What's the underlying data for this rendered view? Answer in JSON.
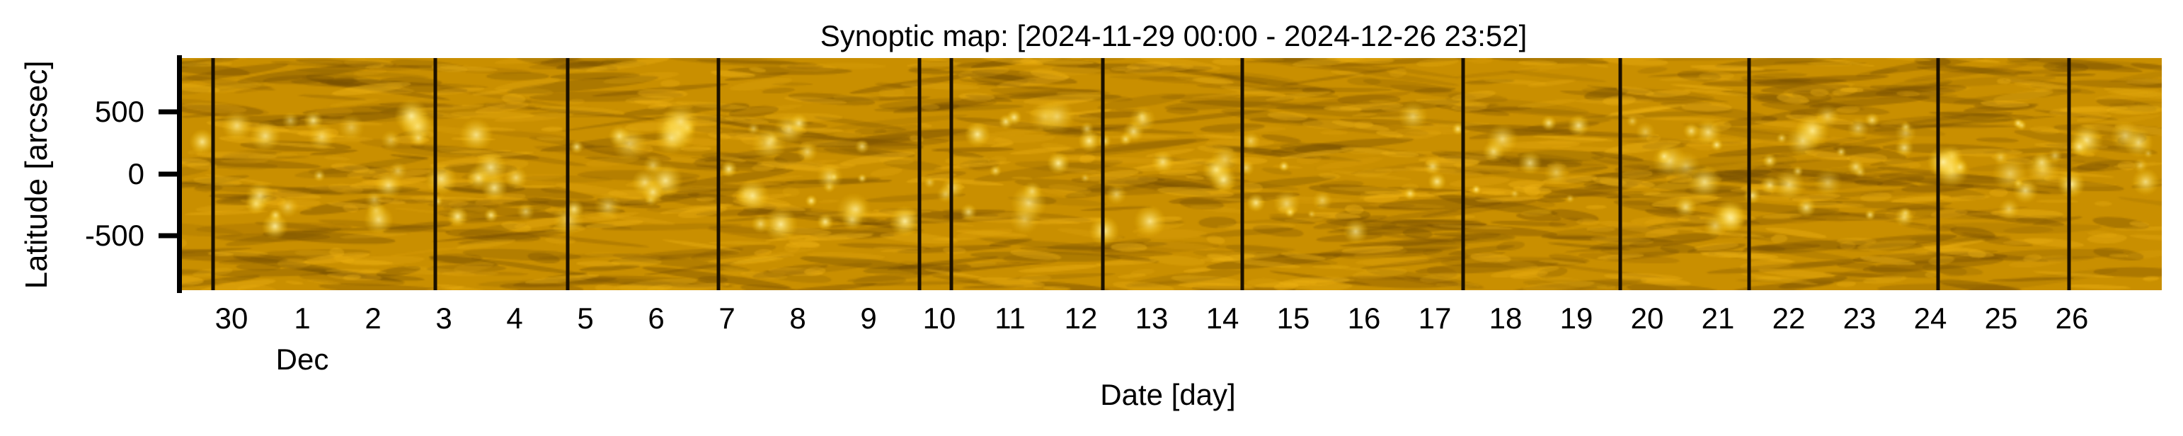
{
  "chart_data": {
    "type": "heatmap",
    "title": "Synoptic map: [2024-11-29 00:00 - 2024-12-26 23:52]",
    "xlabel": "Date [day]",
    "ylabel": "Latitude [arcsec]",
    "colormap": "gold (SDO/AIA 171-like)",
    "ylim": [
      -940,
      935
    ],
    "xlim_days": [
      0,
      28
    ],
    "yticks": [
      500,
      0,
      -500
    ],
    "ytick_labels": [
      "500",
      "0",
      "-500"
    ],
    "xtick_labels": [
      "30",
      "1",
      "2",
      "3",
      "4",
      "5",
      "6",
      "7",
      "8",
      "9",
      "10",
      "11",
      "12",
      "13",
      "14",
      "15",
      "16",
      "17",
      "18",
      "19",
      "20",
      "21",
      "22",
      "23",
      "24",
      "25",
      "26"
    ],
    "xtick_first_day_offset": 0.73,
    "month_label": "Dec",
    "month_label_under_tick": "1",
    "data_gaps_day_offset": [
      0.47,
      3.61,
      5.48,
      7.61,
      10.45,
      10.9,
      13.04,
      15.01,
      18.13,
      20.35,
      22.17,
      24.84,
      26.69
    ],
    "grid": false,
    "colors": {
      "base": "#c98f00",
      "dark": "#7a5400",
      "bright": "#fff0a0",
      "gap": "#1a1000"
    }
  }
}
